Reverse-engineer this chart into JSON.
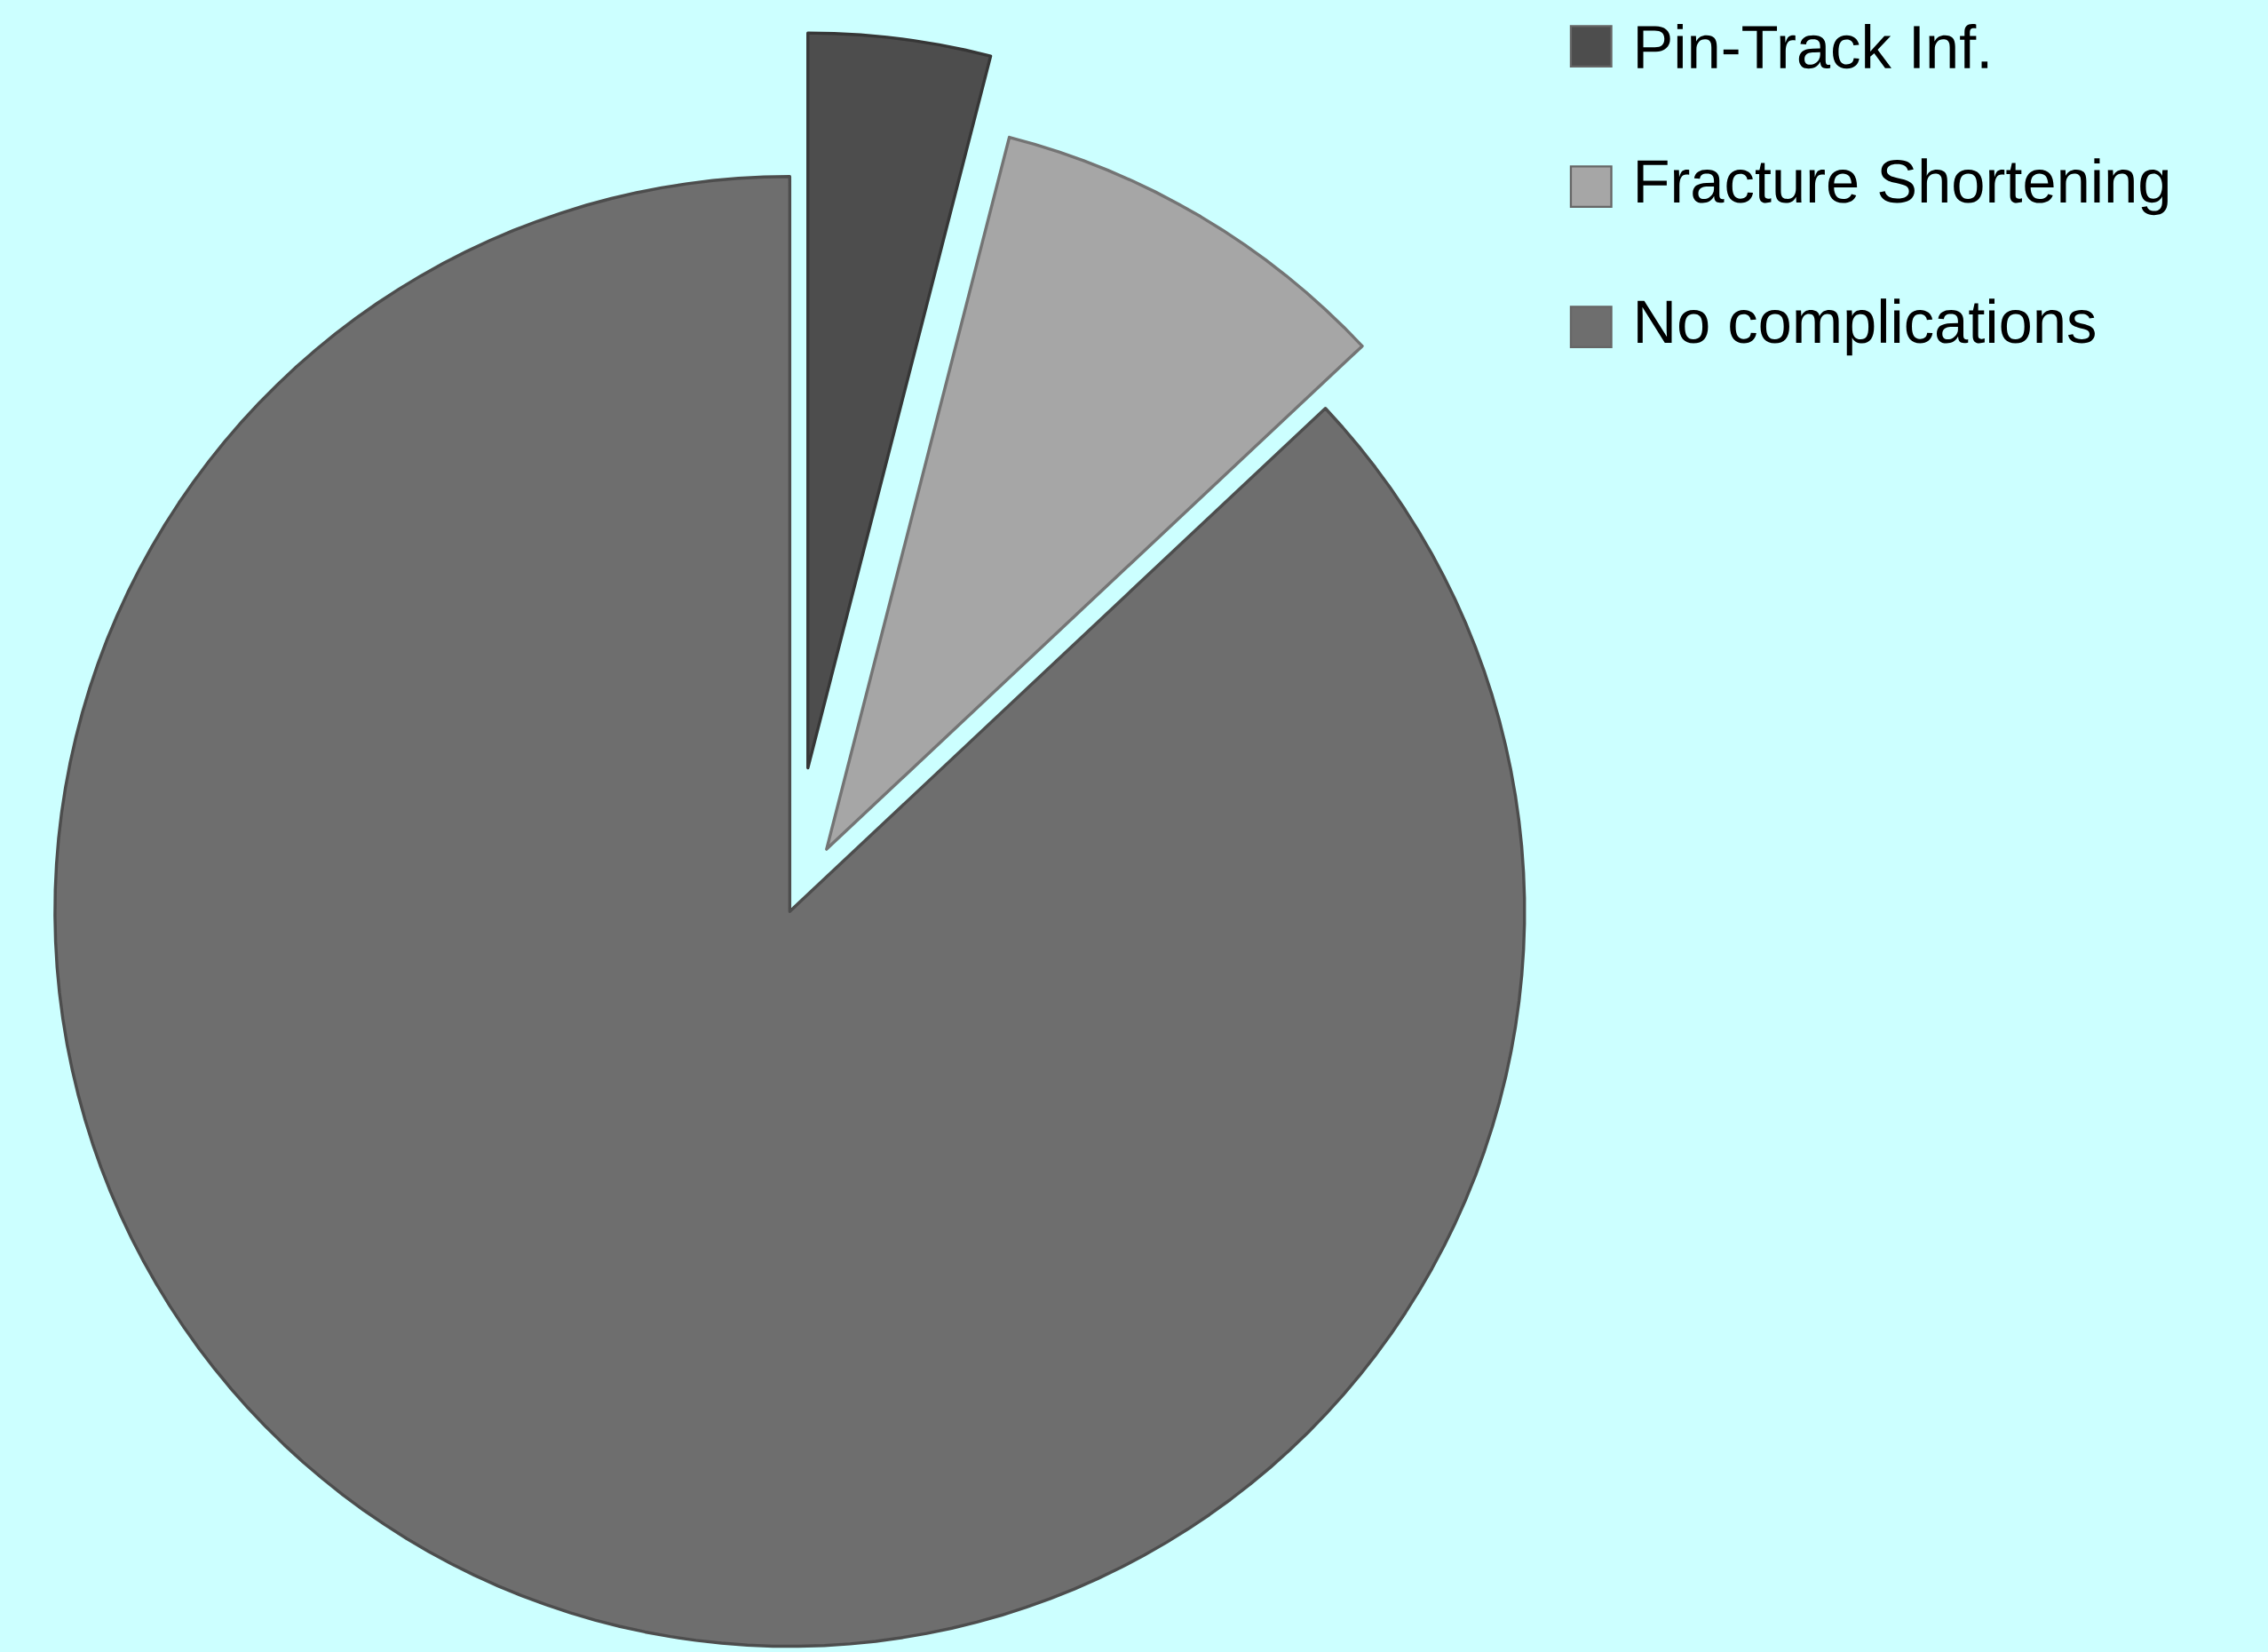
{
  "chart_data": {
    "type": "pie",
    "categories": [
      "Pin-Track Inf.",
      "Fracture Shortening",
      "No complications"
    ],
    "values": [
      4,
      9,
      87
    ],
    "colors": [
      "#4d4d4d",
      "#a6a6a6",
      "#6e6e6e"
    ],
    "legend": "top right"
  }
}
